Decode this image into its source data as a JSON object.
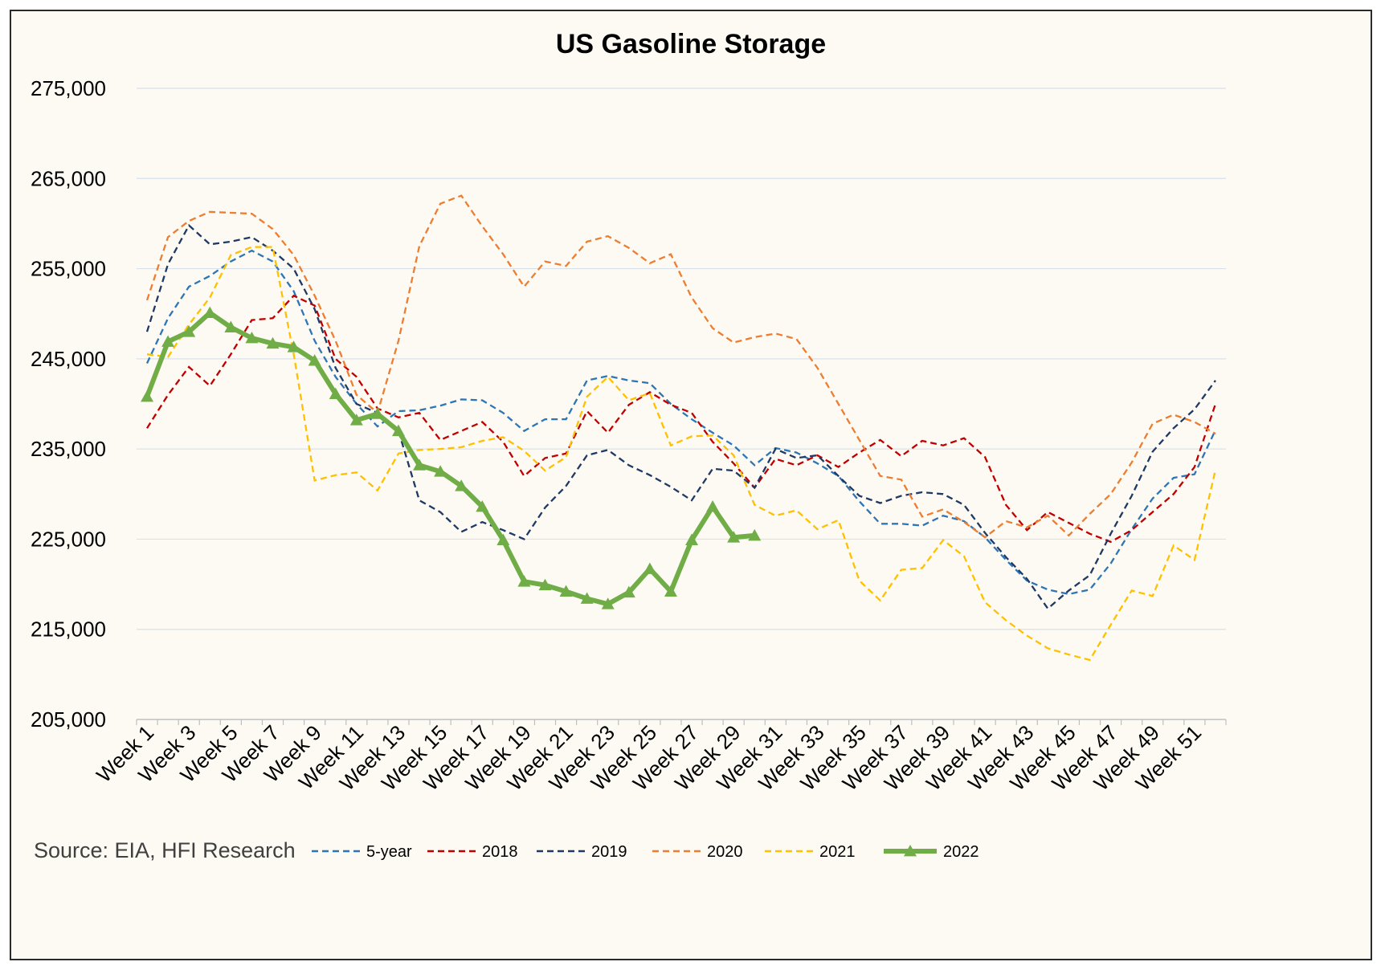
{
  "chart_data": {
    "type": "line",
    "title": "US Gasoline Storage",
    "xlabel": "",
    "ylabel": "",
    "source": "Source: EIA, HFI Research",
    "ylim": [
      205000,
      275000
    ],
    "yticks": [
      "205,000",
      "215,000",
      "225,000",
      "235,000",
      "245,000",
      "255,000",
      "265,000",
      "275,000"
    ],
    "ytick_values": [
      205000,
      215000,
      225000,
      235000,
      245000,
      255000,
      265000,
      275000
    ],
    "x_weeks": 52,
    "xtick_labels": [
      "Week 1",
      "Week 3",
      "Week 5",
      "Week 7",
      "Week 9",
      "Week 11",
      "Week 13",
      "Week 15",
      "Week 17",
      "Week 19",
      "Week 21",
      "Week 23",
      "Week 25",
      "Week 27",
      "Week 29",
      "Week 31",
      "Week 33",
      "Week 35",
      "Week 37",
      "Week 39",
      "Week 41",
      "Week 43",
      "Week 45",
      "Week 47",
      "Week 49",
      "Week 51"
    ],
    "grid": true,
    "legend_position": "bottom",
    "series": [
      {
        "name": "5-year",
        "color": "#2E75B6",
        "style": "dashed",
        "values": [
          244500,
          249500,
          253000,
          254200,
          255800,
          257000,
          255800,
          252500,
          247000,
          243000,
          240000,
          237500,
          239200,
          239300,
          239800,
          240500,
          240400,
          239000,
          237000,
          238300,
          238300,
          242600,
          243100,
          242600,
          242300,
          240000,
          238300,
          236800,
          235400,
          233200,
          235100,
          234600,
          233400,
          232000,
          229200,
          226700,
          226700,
          226500,
          227600,
          227000,
          225200,
          222700,
          220400,
          219400,
          218900,
          219400,
          222300,
          226100,
          229500,
          231800,
          232200,
          237100
        ]
      },
      {
        "name": "2018",
        "color": "#C00000",
        "style": "dashed",
        "values": [
          237300,
          241000,
          244100,
          242000,
          245500,
          249300,
          249500,
          252000,
          250900,
          245000,
          243000,
          239500,
          238500,
          239000,
          236000,
          237000,
          238000,
          235800,
          232000,
          234000,
          234500,
          239200,
          236800,
          239900,
          241300,
          239900,
          239000,
          235800,
          233400,
          230700,
          233900,
          233200,
          234300,
          233000,
          234600,
          236000,
          234200,
          235900,
          235400,
          236200,
          234100,
          228800,
          226000,
          228000,
          226800,
          225600,
          224700,
          226000,
          228000,
          230000,
          233000,
          240000
        ]
      },
      {
        "name": "2019",
        "color": "#1F3864",
        "style": "dashed",
        "values": [
          248000,
          255500,
          259800,
          257700,
          258000,
          258500,
          257000,
          255000,
          250500,
          244000,
          240000,
          239000,
          237000,
          229300,
          228000,
          225800,
          226900,
          226000,
          225000,
          228500,
          230900,
          234300,
          234900,
          233200,
          232100,
          230800,
          229300,
          232800,
          232600,
          230700,
          235000,
          234000,
          234300,
          232000,
          229800,
          229000,
          229800,
          230200,
          230000,
          228800,
          225700,
          223000,
          220600,
          217300,
          219300,
          221000,
          225600,
          229800,
          234700,
          237300,
          239400,
          242600
        ]
      },
      {
        "name": "2020",
        "color": "#ED7D31",
        "style": "dashed",
        "values": [
          251500,
          258500,
          260300,
          261300,
          261200,
          261100,
          259400,
          256500,
          252000,
          247000,
          241000,
          239000,
          247000,
          257500,
          262200,
          263100,
          259700,
          256600,
          253000,
          255800,
          255300,
          258000,
          258600,
          257300,
          255600,
          256600,
          251800,
          248400,
          246800,
          247400,
          247800,
          247200,
          244000,
          240000,
          236000,
          232000,
          231600,
          227500,
          228300,
          226900,
          225200,
          227000,
          226300,
          227600,
          225400,
          227800,
          230000,
          233500,
          237800,
          238800,
          238000,
          236700
        ]
      },
      {
        "name": "2021",
        "color": "#FFC000",
        "style": "dashed",
        "values": [
          245500,
          245200,
          248800,
          251800,
          256500,
          257400,
          257400,
          245500,
          231500,
          232100,
          232400,
          230400,
          234500,
          234900,
          235000,
          235200,
          235900,
          236300,
          234800,
          232600,
          234100,
          240800,
          243000,
          240400,
          241200,
          235400,
          236400,
          236500,
          234300,
          228800,
          227600,
          228200,
          226100,
          227100,
          220400,
          218200,
          221600,
          221800,
          224900,
          223100,
          218000,
          216000,
          214300,
          212900,
          212200,
          211600,
          215500,
          219300,
          218700,
          224300,
          222700,
          232700
        ]
      },
      {
        "name": "2022",
        "color": "#70AD47",
        "style": "solid-marker",
        "values": [
          240800,
          246900,
          248000,
          250100,
          248500,
          247300,
          246700,
          246300,
          244800,
          241100,
          238200,
          238900,
          237000,
          233200,
          232500,
          230900,
          228600,
          224900,
          220300,
          219900,
          219200,
          218400,
          217800,
          219100,
          221700,
          219200,
          224900,
          228600,
          225200,
          225400
        ]
      }
    ]
  }
}
